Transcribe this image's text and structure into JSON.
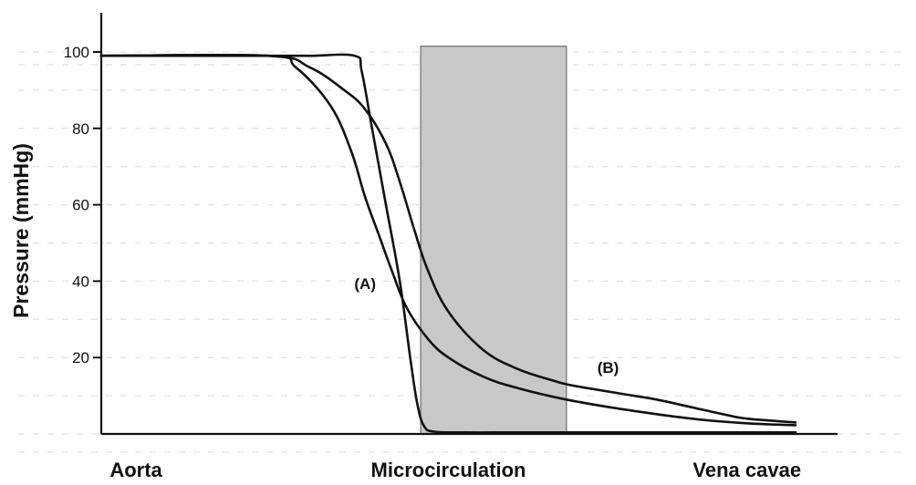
{
  "chart_data": {
    "type": "line",
    "title": "",
    "ylabel": "Pressure (mmHg)",
    "ylim": [
      0,
      105
    ],
    "yticks": [
      100,
      80,
      60,
      40,
      20
    ],
    "xlim": [
      0,
      100
    ],
    "x_categories": [
      {
        "label": "Aorta",
        "x": 5
      },
      {
        "label": "Microcirculation",
        "x": 50
      },
      {
        "label": "Vena cavae",
        "x": 93
      }
    ],
    "shaded_region": {
      "x": [
        46,
        67
      ],
      "y": [
        0,
        101.5
      ],
      "color": "#c8c8c8"
    },
    "grid": true,
    "series": [
      {
        "name": "(A)",
        "x": [
          0,
          24,
          30,
          36.5,
          37.5,
          39,
          41,
          43,
          44.5,
          45.5,
          46.5,
          48,
          52,
          60,
          70,
          80,
          90,
          100
        ],
        "y": [
          99,
          99,
          99,
          99,
          95,
          80,
          60,
          40,
          20,
          8,
          2,
          0.6,
          0.4,
          0.4,
          0.4,
          0.4,
          0.4,
          0.4
        ]
      },
      {
        "name": "",
        "x": [
          0,
          24,
          28,
          33,
          36,
          38,
          40,
          42,
          44,
          47,
          50,
          55,
          60,
          67,
          75,
          85,
          93,
          100
        ],
        "y": [
          99,
          99,
          96,
          86,
          74,
          62,
          52,
          42,
          33,
          25,
          20,
          15,
          12,
          9,
          6.5,
          4,
          2.8,
          2.3
        ]
      },
      {
        "name": "(B)",
        "x": [
          0,
          24,
          30,
          35,
          38,
          41,
          43,
          45,
          47,
          50,
          55,
          60,
          65,
          67,
          70,
          75,
          80,
          85,
          90,
          93,
          100
        ],
        "y": [
          99,
          99,
          96,
          90,
          85,
          76,
          66,
          54,
          43,
          32,
          22,
          17,
          14,
          13,
          12,
          10.5,
          9,
          7,
          5,
          4,
          3
        ]
      }
    ],
    "annotations": [
      {
        "text": "(A)",
        "x": 38,
        "y": 38
      },
      {
        "text": "(B)",
        "x": 73,
        "y": 16
      }
    ]
  }
}
